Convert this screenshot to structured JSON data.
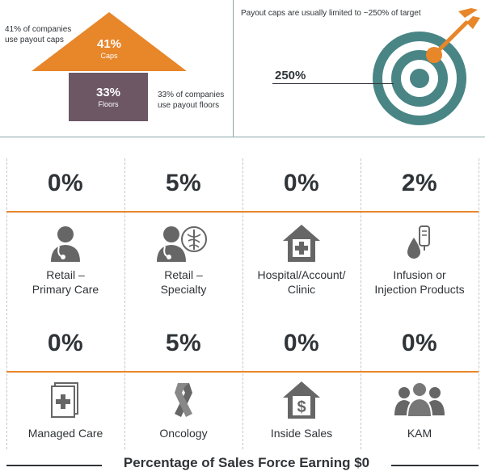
{
  "top_left": {
    "caps_note_line1": "41% of companies",
    "caps_note_line2": "use payout caps",
    "caps_value": "41%",
    "caps_label": "Caps",
    "floors_value": "33%",
    "floors_label": "Floors",
    "floors_note_line1": "33% of companies",
    "floors_note_line2": "use payout floors"
  },
  "top_right": {
    "title": "Payout caps are usually limited to ~250% of target",
    "target_value": "250%"
  },
  "row1": [
    {
      "pct": "0%",
      "line1": "Retail –",
      "line2": "Primary Care",
      "icon": "doctor-stethoscope-icon"
    },
    {
      "pct": "5%",
      "line1": "Retail –",
      "line2": "Specialty",
      "icon": "doctor-caduceus-icon"
    },
    {
      "pct": "0%",
      "line1": "Hospital/Account/",
      "line2": "Clinic",
      "icon": "hospital-icon"
    },
    {
      "pct": "2%",
      "line1": "Infusion or",
      "line2": "Injection Products",
      "icon": "iv-drip-icon"
    }
  ],
  "row2": [
    {
      "pct": "0%",
      "line1": "Managed Care",
      "icon": "medical-documents-icon"
    },
    {
      "pct": "5%",
      "line1": "Oncology",
      "icon": "awareness-ribbon-icon"
    },
    {
      "pct": "0%",
      "line1": "Inside Sales",
      "icon": "dollar-house-icon"
    },
    {
      "pct": "0%",
      "line1": "KAM",
      "icon": "people-group-icon"
    }
  ],
  "footer": {
    "title": "Percentage of Sales Force Earning $0"
  },
  "colors": {
    "orange": "#e8862a",
    "purple": "#6d5765",
    "teal": "#4a8585",
    "dark": "#2f3438",
    "icon": "#666666"
  }
}
